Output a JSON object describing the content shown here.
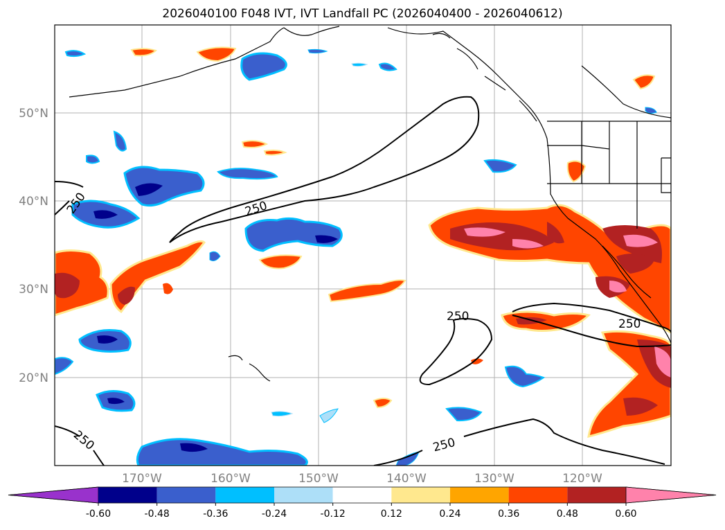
{
  "title": "2026040100 F048 IVT, IVT Landfall PC (2026040400 - 2026040612)",
  "map": {
    "lat_labels": [
      "50°N",
      "40°N",
      "30°N",
      "20°N"
    ],
    "lon_labels": [
      "170°W",
      "160°W",
      "150°W",
      "140°W",
      "130°W",
      "120°W"
    ],
    "contour_label": "250"
  },
  "colorbar": {
    "colors": [
      "#9932CC",
      "#00008B",
      "#3A5FCD",
      "#00BFFF",
      "#ADDFF8",
      "#FFFFFF",
      "#FFE88E",
      "#FFA500",
      "#FF4500",
      "#B22222",
      "#FF82AB"
    ],
    "tick_labels": [
      "-0.60",
      "-0.48",
      "-0.36",
      "-0.24",
      "-0.12",
      "0.12",
      "0.24",
      "0.36",
      "0.48",
      "0.60"
    ]
  }
}
